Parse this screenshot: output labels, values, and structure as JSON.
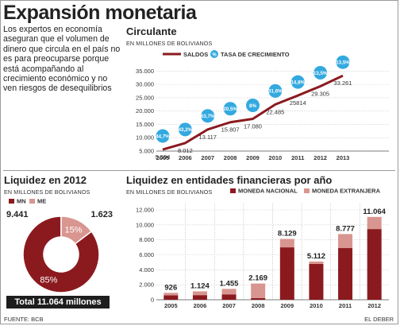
{
  "title": "Expansión monetaria",
  "intro": "Los expertos en economía aseguran que el volumen de dinero que circula en el país no es para preocuparse porque está acompañando al crecimiento económico y no ven riesgos de desequilibrios",
  "source": "FUENTE: BCB",
  "publisher": "EL DEBER",
  "chart_data": [
    {
      "type": "line",
      "title": "Circulante",
      "subtitle": "EN MILLONES DE BOLIVIANOS",
      "x": [
        "2005",
        "2006",
        "2007",
        "2008",
        "2009",
        "2010",
        "2011",
        "2012",
        "2013"
      ],
      "series": [
        {
          "name": "SALDOS",
          "values": [
            5594,
            8012,
            13117,
            15807,
            17080,
            22485,
            25814,
            29305,
            33261
          ],
          "labels": [
            "5.594",
            "8.012",
            "13.117",
            "15.807",
            "17.080",
            "22.485",
            "25814",
            "29.305",
            "33.261"
          ]
        },
        {
          "name": "TASA DE CRECIMIENTO",
          "values": [
            44.7,
            43.2,
            63.7,
            20.5,
            8,
            31.6,
            14.8,
            13.5,
            13.5
          ],
          "labels": [
            "44,7%",
            "43,2%",
            "63,7%",
            "20,5%",
            "8%",
            "31,6%",
            "14,8%",
            "13,5%",
            "13,5%"
          ]
        }
      ],
      "yticks": [
        5000,
        10000,
        15000,
        20000,
        25000,
        30000,
        35000
      ],
      "ytick_labels": [
        "5.000",
        "10.000",
        "15.000",
        "20.000",
        "25.000",
        "30.000",
        "35.000"
      ],
      "ylim": [
        5000,
        36000
      ],
      "colors": {
        "saldos": "#8b1a1f",
        "tasa": "#33a9e0"
      }
    },
    {
      "type": "pie",
      "title": "Liquidez en 2012",
      "subtitle": "EN MILLONES DE BOLIVIANOS",
      "slices": [
        {
          "name": "MN",
          "value": 9441,
          "label": "9.441",
          "percent": "85%",
          "color": "#8b1a1f"
        },
        {
          "name": "ME",
          "value": 1623,
          "label": "1.623",
          "percent": "15%",
          "color": "#d9958f"
        }
      ],
      "total_label": "Total 11.064 millones"
    },
    {
      "type": "bar",
      "title": "Liquidez en entidades financieras por año",
      "subtitle": "EN MILLONES DE BOLIVIANOS",
      "categories": [
        "2005",
        "2006",
        "2007",
        "2008",
        "2009",
        "2010",
        "2011",
        "2012"
      ],
      "series": [
        {
          "name": "MONEDA NACIONAL",
          "values": [
            600,
            620,
            720,
            230,
            7000,
            4800,
            6900,
            9441
          ],
          "color": "#8b1a1f"
        },
        {
          "name": "MONEDA EXTRANJERA",
          "values": [
            326,
            504,
            735,
            1939,
            1129,
            312,
            1877,
            1623
          ],
          "color": "#d9958f"
        }
      ],
      "totals": [
        926,
        1124,
        1455,
        2169,
        8129,
        5112,
        8777,
        11064
      ],
      "total_labels": [
        "926",
        "1.124",
        "1.455",
        "2.169",
        "8.129",
        "5.112",
        "8.777",
        "11.064"
      ],
      "yticks": [
        0,
        2000,
        4000,
        6000,
        8000,
        10000,
        12000
      ],
      "ytick_labels": [
        "0",
        "2.000",
        "4.000",
        "6.000",
        "8.000",
        "10.000",
        "12.000"
      ],
      "ylim": [
        0,
        12000
      ]
    }
  ]
}
